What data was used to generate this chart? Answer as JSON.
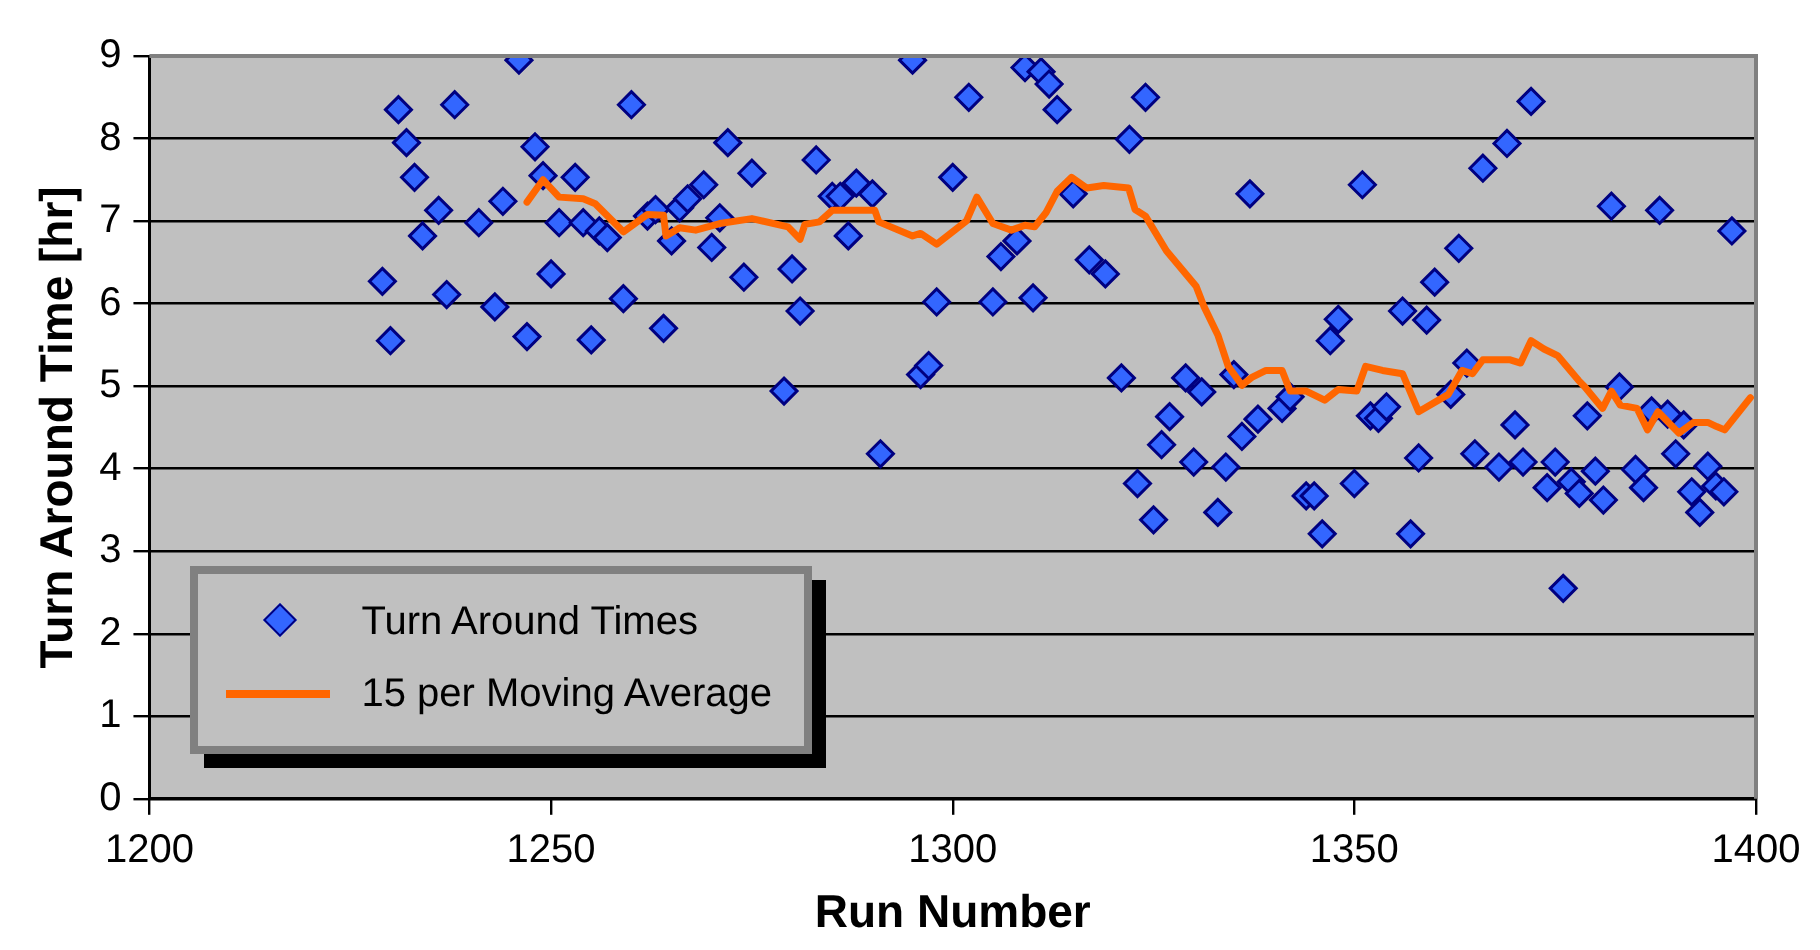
{
  "chart_data": {
    "type": "scatter",
    "xlabel": "Run Number",
    "ylabel": "Turn Around Time [hr]",
    "xlim": [
      1200,
      1400
    ],
    "xticks": [
      1200,
      1250,
      1300,
      1350,
      1400
    ],
    "ylim": [
      0,
      9
    ],
    "yticks": [
      0,
      1,
      2,
      3,
      4,
      5,
      6,
      7,
      8,
      9
    ],
    "grid": "y",
    "legend": "bottom left",
    "series": [
      {
        "name": "Turn Around Times",
        "color": "#3366ff",
        "marker": "diamond",
        "x": [
          1229,
          1230,
          1231,
          1232,
          1233,
          1234,
          1236,
          1237,
          1238,
          1241,
          1243,
          1244,
          1246,
          1247,
          1248,
          1249,
          1250,
          1251,
          1253,
          1254,
          1255,
          1256,
          1257,
          1259,
          1260,
          1262,
          1263,
          1264,
          1265,
          1266,
          1267,
          1269,
          1270,
          1271,
          1272,
          1274,
          1275,
          1279,
          1280,
          1281,
          1283,
          1285,
          1286,
          1287,
          1288,
          1290,
          1291,
          1295,
          1296,
          1297,
          1298,
          1300,
          1302,
          1305,
          1306,
          1308,
          1309,
          1310,
          1311,
          1312,
          1313,
          1315,
          1317,
          1319,
          1321,
          1322,
          1323,
          1324,
          1325,
          1326,
          1327,
          1329,
          1330,
          1331,
          1333,
          1334,
          1335,
          1336,
          1337,
          1338,
          1341,
          1342,
          1344,
          1345,
          1346,
          1347,
          1348,
          1350,
          1351,
          1352,
          1353,
          1354,
          1356,
          1357,
          1358,
          1359,
          1360,
          1362,
          1363,
          1364,
          1365,
          1366,
          1368,
          1369,
          1370,
          1371,
          1372,
          1374,
          1375,
          1376,
          1377,
          1378,
          1379,
          1380,
          1381,
          1382,
          1383,
          1385,
          1386,
          1387,
          1388,
          1389,
          1390,
          1391,
          1392,
          1393,
          1394,
          1395,
          1396,
          1397
        ],
        "values": [
          6.27,
          5.55,
          8.35,
          7.95,
          7.53,
          6.82,
          7.13,
          6.11,
          8.41,
          6.98,
          5.96,
          7.24,
          8.95,
          5.6,
          7.9,
          7.55,
          6.36,
          6.98,
          7.53,
          6.98,
          5.56,
          6.88,
          6.8,
          6.06,
          8.41,
          7.06,
          7.14,
          5.7,
          6.76,
          7.16,
          7.27,
          7.44,
          6.68,
          7.04,
          7.95,
          6.32,
          7.58,
          4.94,
          6.42,
          5.91,
          7.74,
          7.3,
          7.3,
          6.82,
          7.46,
          7.33,
          4.18,
          8.95,
          5.14,
          5.25,
          6.02,
          7.53,
          8.5,
          6.02,
          6.57,
          6.76,
          8.86,
          6.07,
          8.81,
          8.66,
          8.35,
          7.33,
          6.53,
          6.36,
          5.1,
          7.99,
          3.82,
          8.5,
          3.38,
          4.29,
          4.63,
          5.1,
          4.08,
          4.93,
          3.47,
          4.02,
          5.14,
          4.39,
          7.33,
          4.6,
          4.73,
          4.87,
          3.67,
          3.67,
          3.21,
          5.55,
          5.81,
          3.82,
          7.44,
          4.64,
          4.61,
          4.75,
          5.91,
          3.21,
          4.13,
          5.8,
          6.26,
          4.9,
          6.67,
          5.28,
          4.18,
          7.64,
          4.02,
          7.94,
          4.53,
          4.08,
          8.45,
          3.77,
          4.08,
          2.55,
          3.84,
          3.7,
          4.64,
          3.97,
          3.62,
          7.18,
          4.99,
          3.99,
          3.77,
          4.7,
          7.13,
          4.66,
          4.18,
          4.53,
          3.72,
          3.47,
          4.03,
          3.79,
          3.72,
          6.88
        ]
      },
      {
        "name": "15 per Moving Average",
        "type": "line",
        "color": "#ff6600",
        "marker": "none",
        "x": [
          1247,
          1249,
          1251,
          1254,
          1255.5,
          1259,
          1262,
          1264,
          1264.3,
          1266,
          1268,
          1271,
          1275,
          1279.5,
          1281,
          1281.6,
          1283.4,
          1285,
          1290.3,
          1290.8,
          1295,
          1296,
          1298,
          1301.7,
          1303,
          1305,
          1307.3,
          1309,
          1310.2,
          1311.6,
          1313,
          1314.8,
          1316.7,
          1318.8,
          1321.9,
          1322.7,
          1324,
          1326.6,
          1330.3,
          1331.3,
          1333,
          1334.3,
          1336,
          1337.3,
          1339,
          1341,
          1342,
          1344,
          1346.3,
          1348,
          1350.3,
          1351.4,
          1353.5,
          1356,
          1358,
          1361.7,
          1363.4,
          1364.7,
          1366,
          1369.3,
          1370.7,
          1372,
          1373.6,
          1375.3,
          1377.9,
          1378.7,
          1380.9,
          1382,
          1383.1,
          1385.2,
          1386.5,
          1387.8,
          1390.4,
          1392.2,
          1394,
          1395.1,
          1396.1,
          1399.3
        ],
        "values": [
          7.23,
          7.5,
          7.29,
          7.27,
          7.21,
          6.87,
          7.08,
          7.07,
          6.82,
          6.92,
          6.89,
          6.97,
          7.03,
          6.93,
          6.78,
          6.96,
          6.99,
          7.13,
          7.13,
          6.99,
          6.82,
          6.85,
          6.72,
          7.0,
          7.29,
          6.97,
          6.89,
          6.95,
          6.93,
          7.1,
          7.36,
          7.53,
          7.4,
          7.43,
          7.4,
          7.14,
          7.06,
          6.64,
          6.21,
          5.96,
          5.62,
          5.24,
          5.01,
          5.11,
          5.19,
          5.19,
          4.94,
          4.94,
          4.83,
          4.96,
          4.94,
          5.24,
          5.19,
          5.15,
          4.69,
          4.9,
          5.19,
          5.15,
          5.32,
          5.32,
          5.28,
          5.55,
          5.45,
          5.37,
          5.07,
          4.99,
          4.73,
          4.94,
          4.77,
          4.73,
          4.47,
          4.69,
          4.43,
          4.56,
          4.56,
          4.51,
          4.47,
          4.86
        ]
      }
    ]
  }
}
